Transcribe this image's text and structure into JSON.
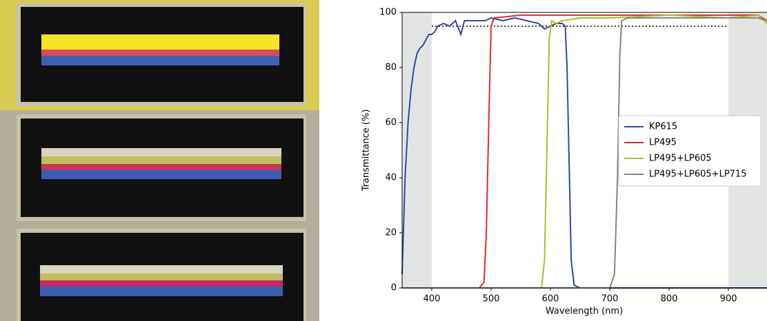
{
  "chart_data": {
    "type": "line",
    "xlabel": "Wavelength (nm)",
    "ylabel": "Transmittance (%)",
    "xlim": [
      350,
      965
    ],
    "ylim": [
      0,
      100
    ],
    "xticks": [
      400,
      500,
      600,
      700,
      800,
      900
    ],
    "yticks": [
      0,
      20,
      40,
      60,
      80,
      100
    ],
    "shaded_regions": [
      [
        350,
        400
      ],
      [
        900,
        965
      ]
    ],
    "shade_color": "#e3e5e5",
    "reference_line": {
      "y": 95,
      "x": [
        400,
        900
      ],
      "color": "#000000"
    },
    "legend": "right",
    "series": [
      {
        "name": "KP615",
        "color": "#2f4a9e",
        "x": [
          350,
          355,
          360,
          365,
          370,
          375,
          380,
          385,
          390,
          395,
          400,
          405,
          410,
          420,
          430,
          440,
          449,
          455,
          460,
          470,
          480,
          490,
          500,
          520,
          540,
          560,
          580,
          590,
          600,
          610,
          620,
          625,
          628,
          632,
          635,
          640,
          650,
          700,
          800,
          965
        ],
        "values": [
          5,
          40,
          60,
          72,
          80,
          85,
          87,
          88,
          90,
          92,
          92,
          93,
          95,
          96,
          95,
          97,
          92,
          97,
          97,
          97,
          97,
          97,
          98,
          97,
          98,
          97,
          96,
          94,
          95,
          96,
          96,
          95,
          80,
          40,
          10,
          1,
          0,
          0,
          0,
          0
        ]
      },
      {
        "name": "LP495",
        "color": "#e8262b",
        "x": [
          350,
          480,
          488,
          492,
          496,
          500,
          505,
          550,
          600,
          700,
          800,
          900,
          950,
          965
        ],
        "values": [
          0,
          0,
          2,
          20,
          60,
          95,
          98,
          99,
          99,
          99,
          99,
          99,
          99,
          97
        ]
      },
      {
        "name": "LP495+LP605",
        "color": "#b5b921",
        "x": [
          350,
          585,
          590,
          594,
          598,
          602,
          610,
          620,
          650,
          700,
          800,
          900,
          950,
          965
        ],
        "values": [
          0,
          0,
          10,
          50,
          90,
          97,
          96,
          97,
          98,
          98,
          99,
          98,
          99,
          96
        ]
      },
      {
        "name": "LP495+LP605+LP715",
        "color": "#858585",
        "x": [
          350,
          700,
          708,
          713,
          717,
          720,
          730,
          800,
          900,
          950,
          965
        ],
        "values": [
          0,
          0,
          5,
          40,
          85,
          97,
          98,
          98,
          98,
          98,
          97
        ]
      }
    ]
  }
}
